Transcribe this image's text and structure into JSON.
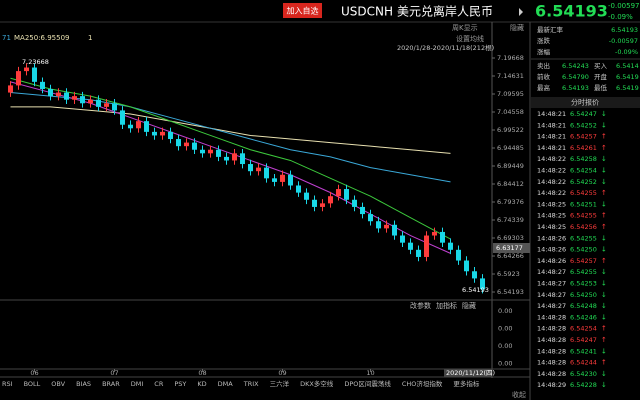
{
  "header": {
    "button": "加入自选",
    "symbol": "USDCNH",
    "name": "美元兑离岸人民币",
    "price": "6.54193",
    "change": "-0.00597",
    "pct": "-0.09%"
  },
  "chart_controls": {
    "view": "周K显示",
    "hide": "隐藏",
    "ma_setting": "设置均线",
    "range": "2020/1/28-2020/11/18(212根)",
    "hover_price": "6.63177"
  },
  "chart_data": {
    "type": "candlestick",
    "legend_prefix": "71",
    "legend_suffix": "1",
    "up_color": "#ff3c3c",
    "down_color": "#19d8e8",
    "candles": [
      [
        7.1,
        7.132,
        7.088,
        7.12
      ],
      [
        7.12,
        7.172,
        7.108,
        7.16
      ],
      [
        7.16,
        7.182,
        7.148,
        7.17
      ],
      [
        7.17,
        7.182,
        7.118,
        7.13
      ],
      [
        7.13,
        7.142,
        7.098,
        7.11
      ],
      [
        7.11,
        7.122,
        7.078,
        7.09
      ],
      [
        7.09,
        7.112,
        7.078,
        7.1
      ],
      [
        7.1,
        7.112,
        7.068,
        7.08
      ],
      [
        7.08,
        7.102,
        7.068,
        7.09
      ],
      [
        7.09,
        7.102,
        7.058,
        7.07
      ],
      [
        7.07,
        7.092,
        7.058,
        7.08
      ],
      [
        7.08,
        7.092,
        7.048,
        7.06
      ],
      [
        7.06,
        7.082,
        7.048,
        7.07
      ],
      [
        7.07,
        7.082,
        7.038,
        7.05
      ],
      [
        7.05,
        7.062,
        6.998,
        7.01
      ],
      [
        7.01,
        7.022,
        6.988,
        7.0
      ],
      [
        7.0,
        7.032,
        6.988,
        7.02
      ],
      [
        7.02,
        7.032,
        6.978,
        6.99
      ],
      [
        6.99,
        7.002,
        6.968,
        6.98
      ],
      [
        6.98,
        7.002,
        6.968,
        6.99
      ],
      [
        6.99,
        7.002,
        6.958,
        6.97
      ],
      [
        6.97,
        6.982,
        6.938,
        6.95
      ],
      [
        6.95,
        6.972,
        6.938,
        6.96
      ],
      [
        6.96,
        6.972,
        6.928,
        6.94
      ],
      [
        6.94,
        6.952,
        6.918,
        6.93
      ],
      [
        6.93,
        6.952,
        6.918,
        6.94
      ],
      [
        6.94,
        6.952,
        6.908,
        6.92
      ],
      [
        6.92,
        6.932,
        6.898,
        6.91
      ],
      [
        6.91,
        6.942,
        6.898,
        6.93
      ],
      [
        6.93,
        6.942,
        6.888,
        6.9
      ],
      [
        6.9,
        6.912,
        6.868,
        6.88
      ],
      [
        6.88,
        6.902,
        6.868,
        6.89
      ],
      [
        6.89,
        6.902,
        6.848,
        6.86
      ],
      [
        6.86,
        6.872,
        6.838,
        6.85
      ],
      [
        6.85,
        6.882,
        6.838,
        6.87
      ],
      [
        6.87,
        6.882,
        6.828,
        6.84
      ],
      [
        6.84,
        6.852,
        6.808,
        6.82
      ],
      [
        6.82,
        6.832,
        6.788,
        6.8
      ],
      [
        6.8,
        6.812,
        6.768,
        6.78
      ],
      [
        6.78,
        6.802,
        6.768,
        6.79
      ],
      [
        6.79,
        6.822,
        6.778,
        6.81
      ],
      [
        6.81,
        6.842,
        6.798,
        6.83
      ],
      [
        6.83,
        6.842,
        6.788,
        6.8
      ],
      [
        6.8,
        6.812,
        6.768,
        6.78
      ],
      [
        6.78,
        6.792,
        6.748,
        6.76
      ],
      [
        6.76,
        6.772,
        6.728,
        6.74
      ],
      [
        6.74,
        6.752,
        6.708,
        6.72
      ],
      [
        6.72,
        6.742,
        6.708,
        6.73
      ],
      [
        6.73,
        6.742,
        6.688,
        6.7
      ],
      [
        6.7,
        6.712,
        6.668,
        6.68
      ],
      [
        6.68,
        6.692,
        6.648,
        6.66
      ],
      [
        6.66,
        6.672,
        6.628,
        6.64
      ],
      [
        6.64,
        6.712,
        6.628,
        6.7
      ],
      [
        6.7,
        6.722,
        6.688,
        6.71
      ],
      [
        6.71,
        6.722,
        6.668,
        6.68
      ],
      [
        6.68,
        6.692,
        6.648,
        6.66
      ],
      [
        6.66,
        6.672,
        6.618,
        6.63
      ],
      [
        6.63,
        6.642,
        6.588,
        6.6
      ],
      [
        6.6,
        6.612,
        6.568,
        6.58
      ],
      [
        6.58,
        6.592,
        6.538,
        6.55
      ]
    ],
    "ma_x": [
      0,
      5,
      10,
      15,
      20,
      25,
      30,
      35,
      40,
      45,
      50,
      55
    ],
    "series": [
      {
        "name": "MA250:6.95509",
        "color": "#e8e0b0",
        "values": [
          7.06,
          7.06,
          7.05,
          7.04,
          7.02,
          7.0,
          6.98,
          6.97,
          6.96,
          6.95,
          6.94,
          6.93
        ]
      },
      {
        "color": "#3aa8d8",
        "values": [
          7.1,
          7.09,
          7.08,
          7.06,
          7.03,
          7.0,
          6.97,
          6.94,
          6.92,
          6.89,
          6.87,
          6.85
        ]
      },
      {
        "color": "#3cc83c",
        "values": [
          7.14,
          7.11,
          7.09,
          7.06,
          7.02,
          6.98,
          6.94,
          6.91,
          6.86,
          6.81,
          6.75,
          6.69
        ]
      },
      {
        "color": "#c040d0",
        "values": [
          7.13,
          7.1,
          7.07,
          7.03,
          6.99,
          6.95,
          6.91,
          6.87,
          6.82,
          6.76,
          6.7,
          6.65
        ]
      }
    ],
    "ylim": [
      6.5196,
      7.2974
    ],
    "yticks": [
      7.19668,
      7.14631,
      7.09595,
      7.04558,
      6.99522,
      6.94485,
      6.89449,
      6.84412,
      6.79376,
      6.74339,
      6.69303,
      6.64266,
      6.5923,
      6.54193
    ],
    "xticks": [
      {
        "value": 3,
        "label": "06"
      },
      {
        "value": 13,
        "label": "07"
      },
      {
        "value": 24,
        "label": "08"
      },
      {
        "value": 34,
        "label": "09"
      },
      {
        "value": 45,
        "label": "10"
      }
    ],
    "end_date": "2020/11/12(四)",
    "high_label": "7.23668",
    "low_label": "6.54193"
  },
  "indicator_pane": {
    "buttons": [
      "改参数",
      "加指标",
      "隐藏"
    ],
    "scale": [
      "0.00",
      "0.00",
      "0.00",
      "0.00"
    ]
  },
  "tabs": [
    "RSI",
    "BOLL",
    "OBV",
    "BIAS",
    "BRAR",
    "DMI",
    "CR",
    "PSY",
    "KD",
    "DMA",
    "TRIX",
    "三六洋",
    "DKX多空线",
    "DPO区间震荡线",
    "CHO济坦指数",
    "更多指标"
  ],
  "collapse": "收起",
  "quote": {
    "latest_label": "最新汇率",
    "latest": "6.54193",
    "change_label": "涨跌",
    "change": "-0.00597",
    "pct_label": "涨幅",
    "pct": "-0.09%",
    "pairs": [
      [
        "卖出",
        "6.54243",
        "买入",
        "6.5414"
      ],
      [
        "前收",
        "6.54790",
        "开盘",
        "6.5419"
      ],
      [
        "最高",
        "6.54193",
        "最低",
        "6.5419"
      ]
    ]
  },
  "ticks_title": "分时报价",
  "ticks": [
    [
      "14:48:21",
      "6.54247",
      "↓"
    ],
    [
      "14:48:21",
      "6.54252",
      "↓"
    ],
    [
      "14:48:21",
      "6.54257",
      "↑"
    ],
    [
      "14:48:21",
      "6.54261",
      "↑"
    ],
    [
      "14:48:22",
      "6.54258",
      "↓"
    ],
    [
      "14:48:22",
      "6.54254",
      "↓"
    ],
    [
      "14:48:22",
      "6.54252",
      "↓"
    ],
    [
      "14:48:22",
      "6.54255",
      "↑"
    ],
    [
      "14:48:25",
      "6.54251",
      "↓"
    ],
    [
      "14:48:25",
      "6.54255",
      "↑"
    ],
    [
      "14:48:25",
      "6.54256",
      "↑"
    ],
    [
      "14:48:26",
      "6.54255",
      "↓"
    ],
    [
      "14:48:26",
      "6.54250",
      "↓"
    ],
    [
      "14:48:26",
      "6.54257",
      "↑"
    ],
    [
      "14:48:27",
      "6.54255",
      "↓"
    ],
    [
      "14:48:27",
      "6.54253",
      "↓"
    ],
    [
      "14:48:27",
      "6.54250",
      "↓"
    ],
    [
      "14:48:27",
      "6.54248",
      "↓"
    ],
    [
      "14:48:28",
      "6.54246",
      "↓"
    ],
    [
      "14:48:28",
      "6.54254",
      "↑"
    ],
    [
      "14:48:28",
      "6.54247",
      "↑"
    ],
    [
      "14:48:28",
      "6.54241",
      "↓"
    ],
    [
      "14:48:28",
      "6.54244",
      "↑"
    ],
    [
      "14:48:28",
      "6.54230",
      "↓"
    ],
    [
      "14:48:29",
      "6.54228",
      "↓"
    ]
  ]
}
